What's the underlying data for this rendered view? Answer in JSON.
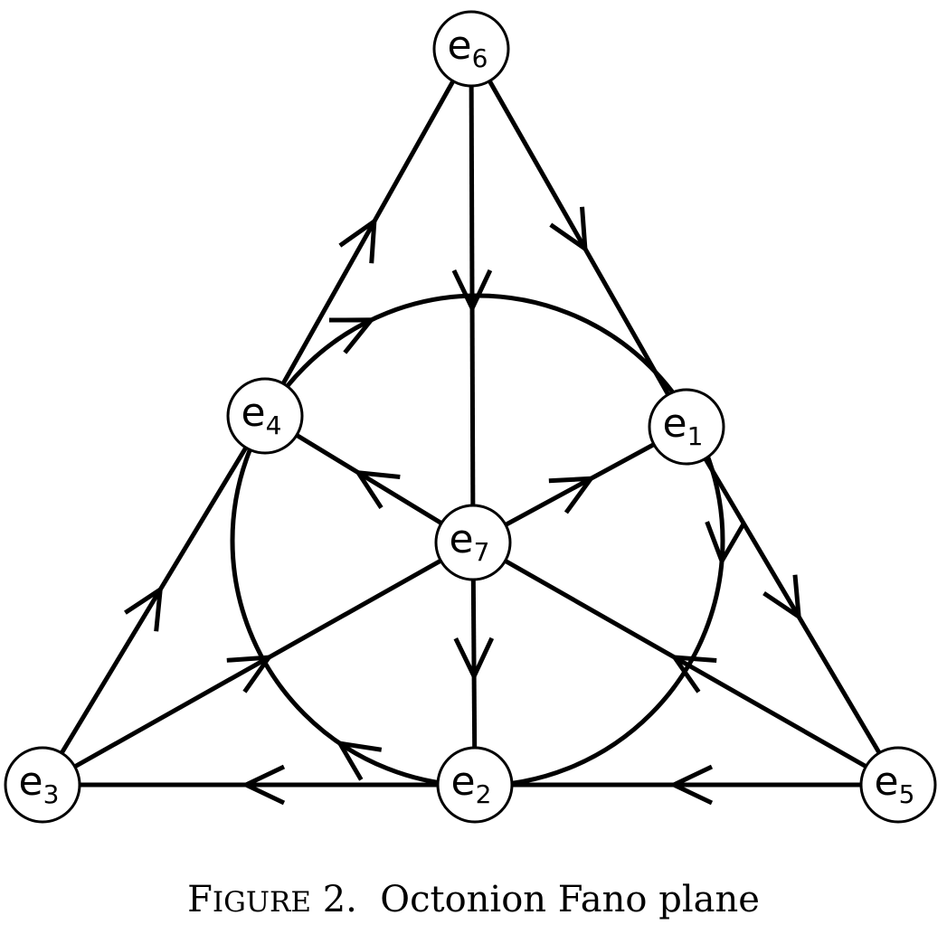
{
  "nodes": [
    {
      "id": "e6",
      "base": "e",
      "sub": "6"
    },
    {
      "id": "e4",
      "base": "e",
      "sub": "4"
    },
    {
      "id": "e1",
      "base": "e",
      "sub": "1"
    },
    {
      "id": "e7",
      "base": "e",
      "sub": "7"
    },
    {
      "id": "e3",
      "base": "e",
      "sub": "3"
    },
    {
      "id": "e2",
      "base": "e",
      "sub": "2"
    },
    {
      "id": "e5",
      "base": "e",
      "sub": "5"
    }
  ],
  "edges": [
    {
      "from": "e4",
      "to": "e6"
    },
    {
      "from": "e3",
      "to": "e4"
    },
    {
      "from": "e6",
      "to": "e1"
    },
    {
      "from": "e1",
      "to": "e5"
    },
    {
      "from": "e5",
      "to": "e2"
    },
    {
      "from": "e2",
      "to": "e3"
    },
    {
      "from": "e6",
      "to": "e7"
    },
    {
      "from": "e7",
      "to": "e2"
    },
    {
      "from": "e7",
      "to": "e4"
    },
    {
      "from": "e5",
      "to": "e7"
    },
    {
      "from": "e7",
      "to": "e1"
    },
    {
      "from": "e3",
      "to": "e7"
    }
  ],
  "circle_order": [
    "e4",
    "e1",
    "e2"
  ],
  "caption": {
    "label_first": "F",
    "label_rest": "IGURE",
    "number": "2.",
    "text": "Octonion Fano plane"
  }
}
